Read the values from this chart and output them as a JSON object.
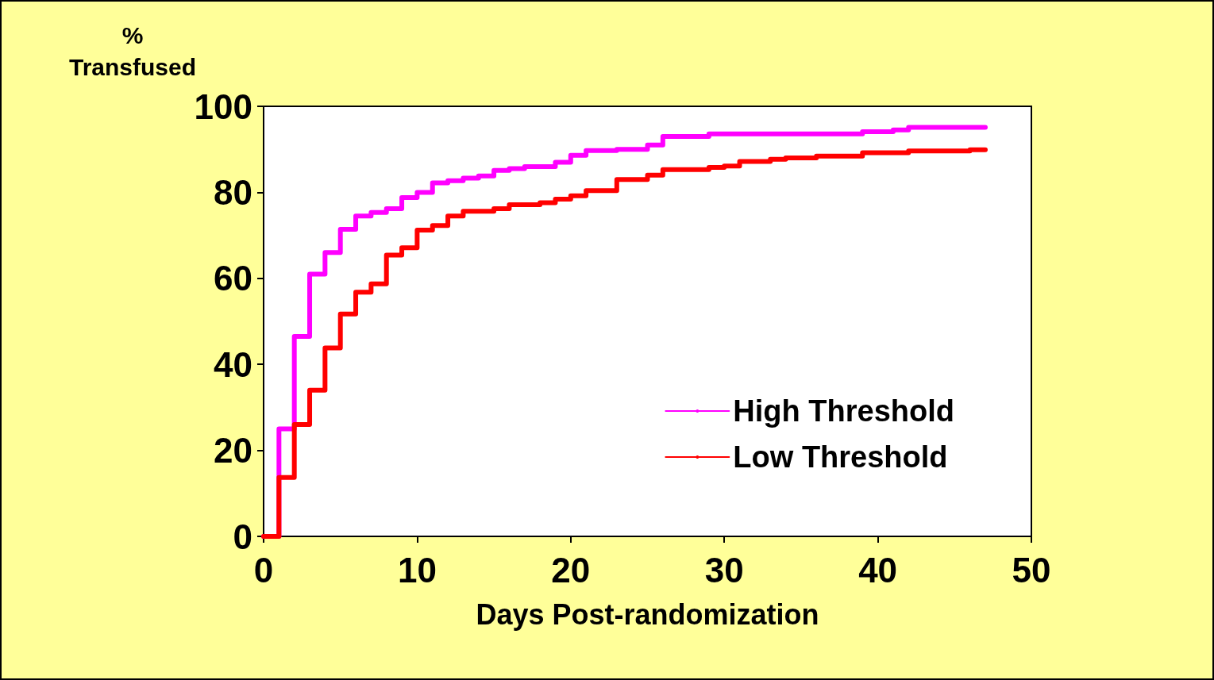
{
  "chart_data": {
    "type": "step",
    "xlabel": "Days Post-randomization",
    "ylabel": "%\nTransfused",
    "xlim": [
      0,
      50
    ],
    "xticks": [
      0,
      10,
      20,
      30,
      40,
      50
    ],
    "ylim": [
      0,
      100
    ],
    "yticks": [
      0,
      20,
      40,
      60,
      80,
      100
    ],
    "grid": false,
    "legend": "bottom right",
    "marker": "none",
    "line_style": "solid",
    "series": [
      {
        "name": "High Threshold",
        "color": "#ff00ff",
        "x": [
          0,
          1,
          2,
          3,
          4,
          5,
          6,
          7,
          8,
          9,
          10,
          11,
          12,
          13,
          14,
          15,
          16,
          17,
          19,
          20,
          21,
          23,
          25,
          26,
          29,
          39,
          41,
          42,
          47
        ],
        "values": [
          0,
          25,
          46.5,
          61,
          66,
          71.4,
          74.5,
          75.3,
          76.2,
          78.8,
          80,
          82.2,
          82.7,
          83.3,
          83.8,
          85.1,
          85.5,
          86,
          87,
          88.6,
          89.7,
          90,
          91,
          93,
          93.6,
          94.1,
          94.5,
          95.1,
          95.1
        ]
      },
      {
        "name": "Low Threshold",
        "color": "#ff0000",
        "x": [
          0,
          1,
          2,
          3,
          4,
          5,
          6,
          7,
          8,
          9,
          10,
          11,
          12,
          13,
          15,
          16,
          18,
          19,
          20,
          21,
          23,
          25,
          26,
          29,
          30,
          31,
          33,
          34,
          36,
          39,
          42,
          46,
          47
        ],
        "values": [
          0,
          13.7,
          26,
          34,
          43.8,
          51.7,
          56.8,
          58.7,
          65.4,
          67.1,
          71.2,
          72.3,
          74.5,
          75.6,
          76.2,
          77.1,
          77.6,
          78.4,
          79.2,
          80.4,
          83,
          84,
          85.3,
          85.8,
          86.1,
          87.2,
          87.7,
          88,
          88.4,
          89.2,
          89.6,
          89.9,
          89.9
        ]
      }
    ]
  }
}
